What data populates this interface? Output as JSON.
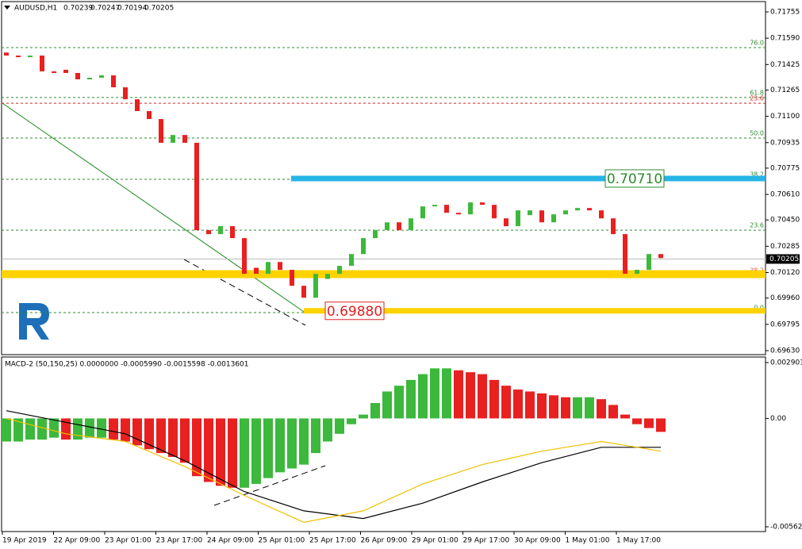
{
  "chart_data": {
    "type": "candlestick",
    "header": {
      "symbol": "AUDUSD,H1",
      "values": [
        0.70239,
        0.70247,
        0.70194,
        0.70205
      ]
    },
    "ylim": [
      0.6963,
      0.71755
    ],
    "yticks": [
      0.71755,
      {
        "value": 0.7159,
        "label": "0.71590"
      },
      0.71425,
      0.71265,
      {
        "value": 0.711,
        "label": "0.71100"
      },
      0.70935,
      0.70775,
      {
        "value": 0.7061,
        "label": "0.70610"
      },
      {
        "value": 0.7045,
        "label": "0.70450"
      },
      0.70285,
      {
        "value": 0.7012,
        "label": "0.70120"
      },
      {
        "value": 0.6996,
        "label": "0.69960"
      },
      0.69795,
      {
        "value": 0.6963,
        "label": "0.69630"
      }
    ],
    "categories": [
      "19 Apr 2019",
      "22 Apr 09:00",
      "23 Apr 01:00",
      "23 Apr 17:00",
      "24 Apr 09:00",
      "25 Apr 01:00",
      "25 Apr 17:00",
      "26 Apr 09:00",
      "29 Apr 01:00",
      "29 Apr 17:00",
      "30 Apr 09:00",
      "1 May 01:00",
      "1 May 17:00"
    ],
    "up_color": "#3cb83c",
    "down_color": "#e82020",
    "open": [
      0.715,
      0.71481,
      0.71471,
      0.71481,
      0.71382,
      0.71392,
      0.71372,
      0.71332,
      0.71342,
      0.71357,
      0.71282,
      0.71207,
      0.71133,
      0.71083,
      0.70934,
      0.70983,
      0.70934,
      0.70386,
      0.70361,
      0.70411,
      0.70336,
      0.7015,
      0.70112,
      0.70186,
      0.70137,
      0.70037,
      0.69962,
      0.7008,
      0.70112,
      0.70162,
      0.70236,
      0.70336,
      0.70386,
      0.70435,
      0.70386,
      0.7046,
      0.70535,
      0.70545,
      0.70495,
      0.70485,
      0.7056,
      0.70545,
      0.7046,
      0.70411,
      0.7048,
      0.7051,
      0.70435,
      0.70485,
      0.7051,
      0.70525,
      0.7051,
      0.7046,
      0.70361,
      0.70112,
      0.70137,
      0.70236
    ],
    "close": [
      0.71481,
      0.71471,
      0.71481,
      0.71382,
      0.71372,
      0.71372,
      0.71332,
      0.71342,
      0.71357,
      0.71282,
      0.71207,
      0.71133,
      0.71083,
      0.70934,
      0.70983,
      0.70934,
      0.70386,
      0.70361,
      0.70411,
      0.70336,
      0.70112,
      0.70112,
      0.70186,
      0.70137,
      0.70037,
      0.69962,
      0.70112,
      0.70112,
      0.70162,
      0.70236,
      0.70336,
      0.70386,
      0.70435,
      0.70386,
      0.7046,
      0.70535,
      0.70545,
      0.70495,
      0.70485,
      0.7056,
      0.70545,
      0.7046,
      0.70411,
      0.7051,
      0.7051,
      0.70435,
      0.70485,
      0.7051,
      0.70525,
      0.7051,
      0.7046,
      0.70361,
      0.70112,
      0.70137,
      0.70236,
      0.70211
    ],
    "last_price": 0.70205,
    "fib_levels": [
      {
        "label": "76.0",
        "price": 0.71531,
        "color": "#2e8b2e"
      },
      {
        "label": "61.8",
        "price": 0.71218,
        "color": "#2e8b2e"
      },
      {
        "label": "23.6",
        "price": 0.71182,
        "color": "#e02020"
      },
      {
        "label": "50.0",
        "price": 0.70964,
        "color": "#2e8b2e"
      },
      {
        "label": "38.2",
        "price": 0.70705,
        "color": "#2e8b2e"
      },
      {
        "label": "23.6",
        "price": 0.70386,
        "color": "#2e8b2e"
      },
      {
        "label": "38.2",
        "price": 0.70103,
        "color": "#e06060"
      },
      {
        "label": "0.0",
        "price": 0.69869,
        "color": "#2e8b2e"
      }
    ],
    "bands": [
      {
        "price": 0.7071,
        "color": "#27b4e6",
        "label": "0.70710",
        "label_color": "#2e8b2e"
      },
      {
        "price": 0.7011,
        "color": "#ffd200"
      },
      {
        "price": 0.6988,
        "color": "#ffd200",
        "label": "0.69880",
        "label_color": "#e02020"
      }
    ],
    "macd": {
      "title": "MACD-2 (50,150,25) 0.0000000 -0.0005990 -0.0015598 -0.0013601",
      "ylim": [
        -0.005629,
        0.0029015
      ],
      "yticks": [
        0.0029015,
        {
          "value": 0,
          "label": "0.00"
        },
        -0.005629
      ],
      "histogram": [
        -0.0012,
        -0.0012,
        -0.0011,
        -0.0011,
        -0.001,
        -0.0011,
        -0.0011,
        -0.001,
        -0.001,
        -0.0011,
        -0.0012,
        -0.0014,
        -0.0016,
        -0.0018,
        -0.002,
        -0.0023,
        -0.003,
        -0.0033,
        -0.0035,
        -0.0036,
        -0.0036,
        -0.0034,
        -0.0031,
        -0.0028,
        -0.0026,
        -0.0024,
        -0.0018,
        -0.0012,
        -0.0008,
        -0.0003,
        0.0002,
        0.0008,
        0.0014,
        0.0017,
        0.002,
        0.0023,
        0.0026,
        0.0026,
        0.0025,
        0.0024,
        0.0023,
        0.002,
        0.0017,
        0.0015,
        0.0014,
        0.0013,
        0.0012,
        0.0011,
        0.0011,
        0.0011,
        0.001,
        0.0007,
        0.0002,
        -0.0003,
        -0.0005,
        -0.0007
      ],
      "lines": [
        {
          "color": "#000000",
          "values": [
            0.0004,
            -0.0002,
            -0.0008,
            -0.0022,
            -0.0038,
            -0.0048,
            -0.0052,
            -0.0044,
            -0.0033,
            -0.0023,
            -0.0015,
            -0.0015
          ]
        },
        {
          "color": "#f0c000",
          "values": [
            0,
            -0.0008,
            -0.0012,
            -0.0025,
            -0.004,
            -0.0054,
            -0.0048,
            -0.0034,
            -0.0024,
            -0.0017,
            -0.0012,
            -0.0017
          ]
        }
      ]
    }
  }
}
